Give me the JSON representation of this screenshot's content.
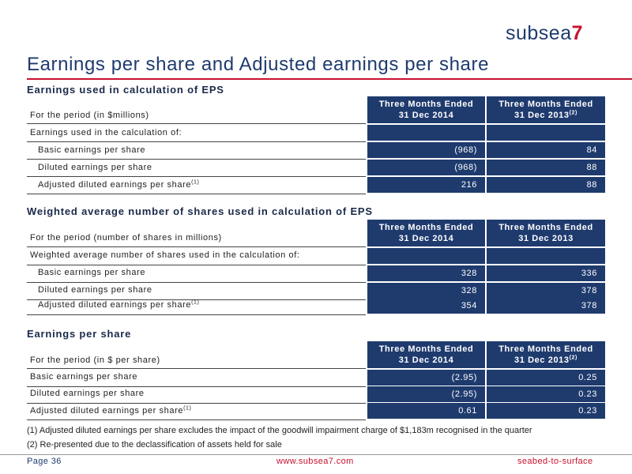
{
  "brand": {
    "name": "subsea",
    "seven": "7"
  },
  "title": "Earnings per share and Adjusted earnings per share",
  "sections": [
    {
      "heading": "Earnings used in calculation of EPS",
      "period_label": "For the period (in $millions)",
      "col1_line1": "Three Months Ended",
      "col1_line2": "31 Dec 2014",
      "col2_line1": "Three Months Ended",
      "col2_line2": "31 Dec 2013",
      "col2_sup": "(2)",
      "group_label": "Earnings used in the calculation of:",
      "rows": [
        {
          "label": "Basic earnings per share",
          "sup": "",
          "v1": "(968)",
          "v2": "84"
        },
        {
          "label": "Diluted earnings per share",
          "sup": "",
          "v1": "(968)",
          "v2": "88"
        },
        {
          "label": "Adjusted diluted earnings per share",
          "sup": "(1)",
          "v1": "216",
          "v2": "88"
        }
      ]
    },
    {
      "heading": "Weighted average number of shares used in calculation of EPS",
      "period_label": "For the period (number of shares in millions)",
      "col1_line1": "Three Months Ended",
      "col1_line2": "31 Dec 2014",
      "col2_line1": "Three Months Ended",
      "col2_line2": "31 Dec 2013",
      "col2_sup": "",
      "group_label": "Weighted average number of shares used in the calculation of:",
      "rows": [
        {
          "label": "Basic earnings per share",
          "sup": "",
          "v1": "328",
          "v2": "336"
        },
        {
          "label": "Diluted earnings per share",
          "sup": "",
          "v1": "328",
          "v2": "378"
        },
        {
          "label": "Adjusted diluted earnings per share",
          "sup": "(1)",
          "v1": "354",
          "v2": "378"
        }
      ]
    },
    {
      "heading": "Earnings per share",
      "period_label": "For the period (in $ per share)",
      "col1_line1": "Three Months Ended",
      "col1_line2": "31 Dec 2014",
      "col2_line1": "Three Months Ended",
      "col2_line2": "31 Dec 2013",
      "col2_sup": "(2)",
      "rows": [
        {
          "label": "Basic earnings per share",
          "sup": "",
          "v1": "(2.95)",
          "v2": "0.25"
        },
        {
          "label": "Diluted earnings per share",
          "sup": "",
          "v1": "(2.95)",
          "v2": "0.23"
        },
        {
          "label": "Adjusted diluted earnings per share",
          "sup": "(1)",
          "v1": "0.61",
          "v2": "0.23"
        }
      ]
    }
  ],
  "footnotes": [
    "(1) Adjusted diluted earnings per share excludes the impact of the goodwill impairment charge of $1,183m recognised in the quarter",
    "(2) Re-presented due to the declassification of assets held for sale"
  ],
  "footer": {
    "page": "Page  36",
    "url": "www.subsea7.com",
    "tagline": "seabed-to-surface"
  },
  "colors": {
    "navy": "#1f3b6e",
    "red": "#c8102e"
  }
}
